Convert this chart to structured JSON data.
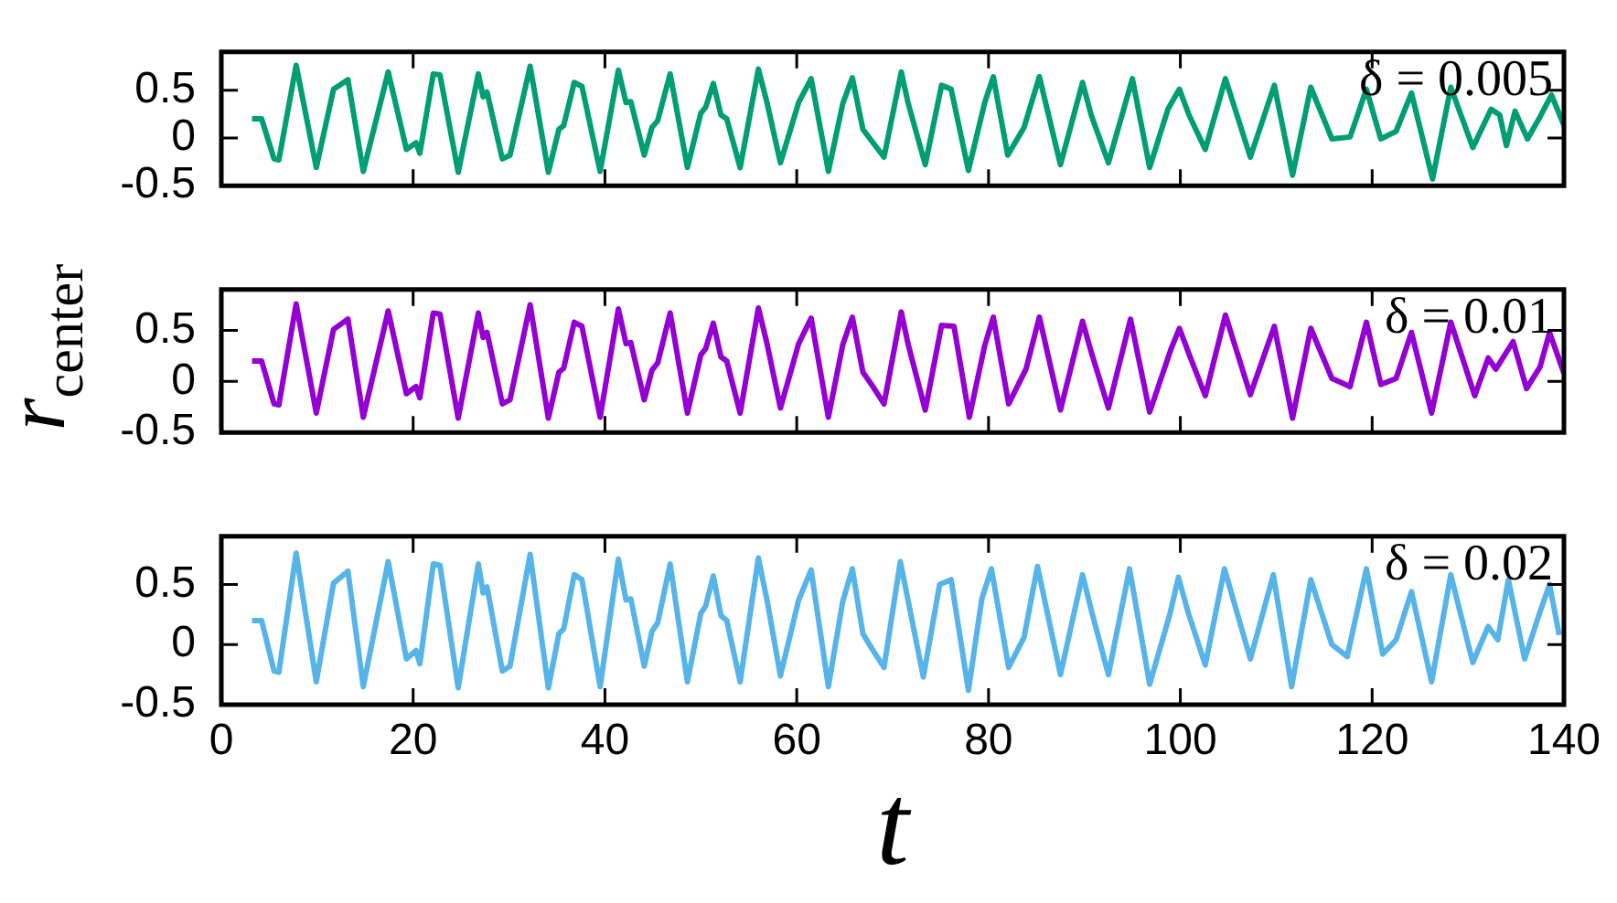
{
  "chart_data": [
    {
      "type": "line",
      "annotations": [
        "δ = 0.005"
      ],
      "xlim": [
        0,
        140
      ],
      "xticks": [
        0,
        20,
        40,
        60,
        80,
        100,
        120,
        140
      ],
      "ylim": [
        -0.5,
        0.9
      ],
      "yticks": [
        -0.5,
        0,
        0.5
      ],
      "tick_labels": "y",
      "x": [
        3.2,
        4.2,
        5.5,
        6.0,
        7.8,
        9.9,
        11.7,
        12.3,
        13.2,
        14.8,
        17.4,
        19.3,
        20.3,
        20.7,
        22.1,
        22.8,
        24.7,
        26.8,
        27.3,
        27.7,
        29.3,
        30.1,
        32.2,
        34.1,
        35.2,
        35.7,
        36.8,
        37.6,
        39.5,
        41.4,
        42.2,
        42.7,
        44.1,
        44.9,
        45.5,
        46.8,
        48.6,
        50.0,
        50.5,
        51.3,
        52.1,
        52.7,
        54.1,
        56.0,
        56.9,
        58.3,
        60.2,
        61.5,
        63.3,
        64.8,
        65.8,
        66.9,
        67.8,
        69.1,
        70.9,
        71.6,
        73.4,
        75.1,
        76.1,
        77.9,
        79.6,
        80.5,
        82.0,
        83.7,
        85.3,
        87.5,
        89.8,
        90.7,
        92.5,
        95.0,
        96.8,
        98.7,
        99.9,
        100.9,
        102.6,
        104.7,
        107.3,
        109.8,
        111.7,
        113.6,
        115.8,
        117.7,
        119.4,
        120.9,
        122.5,
        124.1,
        126.3,
        128.2,
        130.5,
        132.4,
        133.3,
        134.0,
        134.9,
        136.2,
        137.5,
        138.7,
        140.0
      ],
      "series": [
        {
          "color": "#009e73",
          "values": [
            0.2,
            0.2,
            -0.22,
            -0.23,
            0.76,
            -0.31,
            0.51,
            0.55,
            0.61,
            -0.35,
            0.69,
            -0.12,
            -0.05,
            -0.16,
            0.67,
            0.66,
            -0.36,
            0.67,
            0.43,
            0.48,
            -0.22,
            -0.18,
            0.75,
            -0.36,
            0.09,
            0.13,
            0.58,
            0.54,
            -0.35,
            0.71,
            0.37,
            0.38,
            -0.18,
            0.11,
            0.18,
            0.67,
            -0.31,
            0.26,
            0.32,
            0.57,
            0.24,
            0.2,
            -0.31,
            0.72,
            0.37,
            -0.26,
            0.37,
            0.62,
            -0.35,
            0.36,
            0.63,
            0.09,
            -0.03,
            -0.2,
            0.69,
            0.37,
            -0.28,
            0.55,
            0.51,
            -0.34,
            0.37,
            0.64,
            -0.18,
            0.11,
            0.64,
            -0.28,
            0.58,
            0.24,
            -0.26,
            0.62,
            -0.31,
            0.3,
            0.51,
            0.24,
            -0.12,
            0.62,
            -0.2,
            0.55,
            -0.39,
            0.53,
            -0.01,
            0.01,
            0.51,
            -0.01,
            0.07,
            0.47,
            -0.43,
            0.53,
            -0.1,
            0.3,
            0.24,
            -0.08,
            0.28,
            -0.01,
            0.22,
            0.45,
            0.13
          ]
        }
      ]
    },
    {
      "type": "line",
      "ylabel": "r$_{center}$",
      "annotations": [
        "δ = 0.01"
      ],
      "xlim": [
        0,
        140
      ],
      "xticks": [
        0,
        20,
        40,
        60,
        80,
        100,
        120,
        140
      ],
      "ylim": [
        -0.5,
        0.9
      ],
      "yticks": [
        -0.5,
        0,
        0.5
      ],
      "tick_labels": "y",
      "x": [
        3.2,
        4.2,
        5.5,
        6.0,
        7.8,
        9.9,
        11.7,
        12.3,
        13.2,
        14.8,
        17.4,
        19.3,
        20.3,
        20.7,
        22.1,
        22.8,
        24.7,
        26.8,
        27.3,
        27.7,
        29.3,
        30.1,
        32.2,
        34.1,
        35.2,
        35.7,
        36.8,
        37.6,
        39.5,
        41.4,
        42.2,
        42.7,
        44.1,
        44.9,
        45.5,
        46.8,
        48.6,
        50.0,
        50.5,
        51.3,
        52.1,
        52.7,
        54.1,
        56.0,
        56.9,
        58.3,
        60.2,
        61.5,
        63.3,
        64.8,
        65.8,
        66.9,
        67.8,
        69.1,
        70.9,
        71.6,
        73.4,
        75.1,
        76.4,
        78.0,
        79.6,
        80.5,
        82.1,
        83.9,
        85.3,
        87.5,
        89.8,
        90.7,
        92.5,
        94.8,
        96.8,
        99.0,
        99.9,
        100.9,
        102.6,
        104.7,
        107.3,
        109.8,
        111.7,
        113.6,
        115.8,
        117.7,
        119.4,
        120.9,
        122.5,
        124.1,
        126.2,
        128.2,
        130.7,
        132.1,
        132.9,
        134.7,
        136.1,
        137.5,
        138.5,
        140.0
      ],
      "series": [
        {
          "color": "#9400d3",
          "values": [
            0.2,
            0.2,
            -0.22,
            -0.23,
            0.76,
            -0.31,
            0.51,
            0.55,
            0.61,
            -0.35,
            0.69,
            -0.12,
            -0.05,
            -0.16,
            0.67,
            0.66,
            -0.36,
            0.67,
            0.43,
            0.48,
            -0.22,
            -0.18,
            0.75,
            -0.36,
            0.09,
            0.13,
            0.58,
            0.54,
            -0.35,
            0.71,
            0.37,
            0.38,
            -0.18,
            0.11,
            0.18,
            0.67,
            -0.31,
            0.26,
            0.32,
            0.57,
            0.24,
            0.2,
            -0.31,
            0.72,
            0.37,
            -0.26,
            0.37,
            0.62,
            -0.35,
            0.36,
            0.63,
            0.09,
            -0.03,
            -0.22,
            0.68,
            0.37,
            -0.28,
            0.55,
            0.54,
            -0.35,
            0.35,
            0.63,
            -0.22,
            0.12,
            0.63,
            -0.28,
            0.59,
            0.29,
            -0.26,
            0.61,
            -0.3,
            0.31,
            0.52,
            0.27,
            -0.14,
            0.65,
            -0.13,
            0.54,
            -0.36,
            0.52,
            0.03,
            -0.05,
            0.58,
            -0.03,
            0.03,
            0.48,
            -0.31,
            0.58,
            -0.14,
            0.23,
            0.12,
            0.39,
            -0.07,
            0.14,
            0.48,
            0.08
          ]
        }
      ]
    },
    {
      "type": "line",
      "xlabel": "t",
      "annotations": [
        "δ = 0.02"
      ],
      "xlim": [
        0,
        140
      ],
      "xticks": [
        0,
        20,
        40,
        60,
        80,
        100,
        120,
        140
      ],
      "ylim": [
        -0.5,
        0.9
      ],
      "yticks": [
        -0.5,
        0,
        0.5
      ],
      "x": [
        3.2,
        4.2,
        5.5,
        6.0,
        7.8,
        9.9,
        11.7,
        12.3,
        13.2,
        14.8,
        17.4,
        19.3,
        20.3,
        20.7,
        22.1,
        22.8,
        24.7,
        26.8,
        27.3,
        27.7,
        29.3,
        30.1,
        32.2,
        34.1,
        35.2,
        35.7,
        36.8,
        37.6,
        39.5,
        41.4,
        42.2,
        42.7,
        44.1,
        44.9,
        45.5,
        46.8,
        48.6,
        50.0,
        50.5,
        51.3,
        52.1,
        52.7,
        54.1,
        56.0,
        56.9,
        58.3,
        60.2,
        61.5,
        63.3,
        64.8,
        65.8,
        66.9,
        67.8,
        69.1,
        70.8,
        71.6,
        73.2,
        74.9,
        76.1,
        77.9,
        79.3,
        80.3,
        82.1,
        83.7,
        85.1,
        87.5,
        89.8,
        90.7,
        92.5,
        94.7,
        96.8,
        98.9,
        99.8,
        100.8,
        102.6,
        104.6,
        107.3,
        109.7,
        111.6,
        113.6,
        115.8,
        117.4,
        119.4,
        121.1,
        122.5,
        124.1,
        126.2,
        128.2,
        130.5,
        132.1,
        133.1,
        134.2,
        135.9,
        137.5,
        138.5,
        139.5
      ],
      "series": [
        {
          "color": "#56b4e9",
          "values": [
            0.2,
            0.2,
            -0.22,
            -0.23,
            0.76,
            -0.31,
            0.51,
            0.55,
            0.61,
            -0.35,
            0.69,
            -0.12,
            -0.05,
            -0.16,
            0.67,
            0.66,
            -0.36,
            0.67,
            0.43,
            0.48,
            -0.22,
            -0.18,
            0.75,
            -0.36,
            0.09,
            0.13,
            0.58,
            0.54,
            -0.35,
            0.71,
            0.37,
            0.38,
            -0.18,
            0.11,
            0.18,
            0.67,
            -0.31,
            0.26,
            0.32,
            0.57,
            0.24,
            0.2,
            -0.31,
            0.72,
            0.37,
            -0.26,
            0.37,
            0.62,
            -0.35,
            0.36,
            0.63,
            0.09,
            -0.03,
            -0.19,
            0.69,
            0.37,
            -0.27,
            0.5,
            0.54,
            -0.38,
            0.38,
            0.63,
            -0.19,
            0.06,
            0.65,
            -0.25,
            0.58,
            0.29,
            -0.25,
            0.63,
            -0.33,
            0.25,
            0.56,
            0.27,
            -0.17,
            0.63,
            -0.12,
            0.58,
            -0.35,
            0.54,
            0,
            -0.1,
            0.63,
            -0.08,
            0.04,
            0.44,
            -0.31,
            0.58,
            -0.15,
            0.15,
            0.04,
            0.54,
            -0.12,
            0.27,
            0.5,
            0.08
          ]
        }
      ]
    }
  ]
}
